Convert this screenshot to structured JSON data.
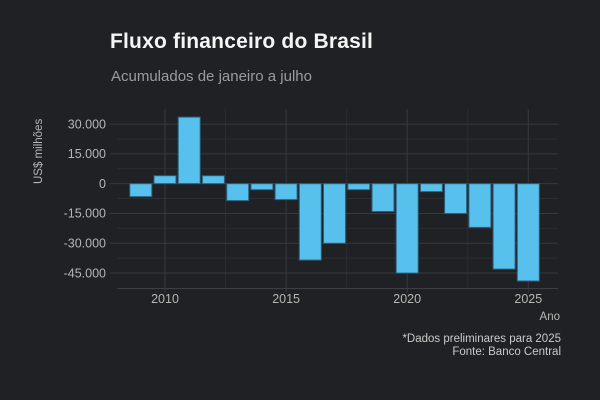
{
  "header": {
    "title": "Fluxo financeiro do Brasil",
    "subtitle": "Acumulados de janeiro a julho"
  },
  "caption": {
    "note": "*Dados preliminares para 2025",
    "source": "Fonte: Banco Central"
  },
  "colors": {
    "background": "#202124",
    "bar_fill": "#58c0ec",
    "bar_border": "#2f5f7c",
    "grid_major": "#36393e",
    "grid_minor": "#2b2d30",
    "title_text": "#f5f5f5",
    "subtitle_text": "#9b9b9b",
    "axis_text": "#b6b6b6",
    "caption_text": "#c9c9c9"
  },
  "chart_data": {
    "type": "bar",
    "title": "Fluxo financeiro do Brasil",
    "subtitle": "Acumulados de janeiro a julho",
    "xlabel": "Ano",
    "ylabel": "US$ milhões",
    "categories": [
      2009,
      2010,
      2011,
      2012,
      2013,
      2014,
      2015,
      2016,
      2017,
      2018,
      2019,
      2020,
      2021,
      2022,
      2023,
      2024,
      2025
    ],
    "values": [
      -6500,
      4000,
      33500,
      4000,
      -8500,
      -3000,
      -8000,
      -38500,
      -30000,
      -3000,
      -14000,
      -45000,
      -4000,
      -15000,
      -22000,
      -43000,
      -49000
    ],
    "ylim": [
      -52800,
      37600
    ],
    "yticks_major": [
      30000,
      15000,
      0,
      -15000,
      -30000,
      -45000
    ],
    "ytick_labels": [
      "30.000",
      "15.000",
      "0",
      "-15.000",
      "-30.000",
      "-45.000"
    ],
    "yticks_minor": [
      22500,
      7500,
      -7500,
      -22500,
      -37500
    ],
    "xticks_major": [
      2010,
      2015,
      2020,
      2025
    ],
    "xtick_labels": [
      "2010",
      "2015",
      "2020",
      "2025"
    ],
    "xticks_minor": [
      2012.5,
      2017.5,
      2022.5
    ],
    "grid": true,
    "legend": false,
    "bar_color": "#58c0ec"
  }
}
